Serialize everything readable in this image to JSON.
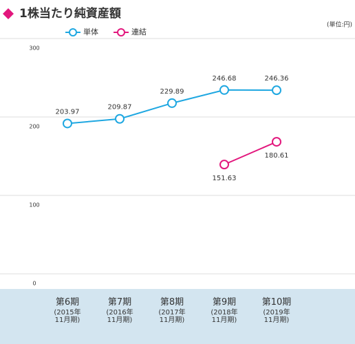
{
  "chart_data": {
    "type": "line",
    "title": "1株当たり純資産額",
    "unit": "(単位:円)",
    "categories": [
      "第6期",
      "第7期",
      "第8期",
      "第9期",
      "第10期"
    ],
    "category_notes": [
      "(2015年\n11月期)",
      "(2016年\n11月期)",
      "(2017年\n11月期)",
      "(2018年\n11月期)",
      "(2019年\n11月期)"
    ],
    "series": [
      {
        "name": "単体",
        "color": "#1ea7e1",
        "values": [
          203.97,
          209.87,
          229.89,
          246.68,
          246.36
        ]
      },
      {
        "name": "連結",
        "color": "#e2177d",
        "values": [
          null,
          null,
          null,
          151.63,
          180.61
        ]
      }
    ],
    "ylim": [
      0,
      300
    ],
    "yticks": [
      0,
      100,
      200,
      300
    ],
    "grid": true
  }
}
